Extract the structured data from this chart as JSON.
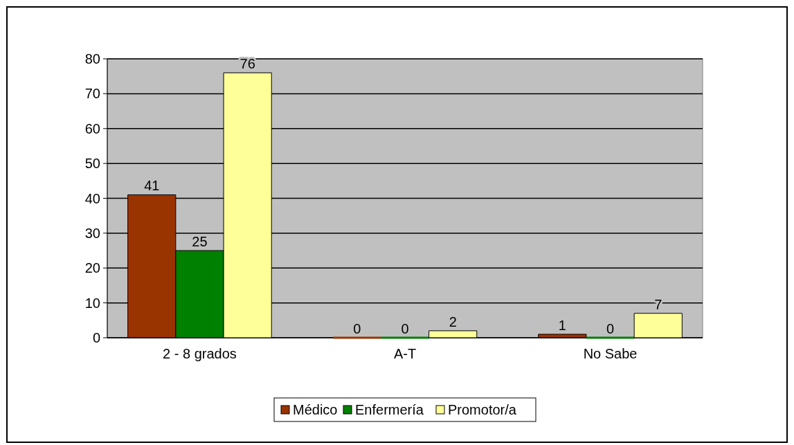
{
  "chart_data": {
    "type": "bar",
    "categories": [
      "2 - 8 grados",
      "A-T",
      "No Sabe"
    ],
    "series": [
      {
        "name": "Médico",
        "color": "#993300",
        "values": [
          41,
          0,
          1
        ]
      },
      {
        "name": "Enfermería",
        "color": "#008000",
        "values": [
          25,
          0,
          0
        ]
      },
      {
        "name": "Promotor/a",
        "color": "#ffff99",
        "values": [
          76,
          2,
          7
        ]
      }
    ],
    "ylim": [
      0,
      80
    ],
    "yticks": [
      0,
      10,
      20,
      30,
      40,
      50,
      60,
      70,
      80
    ],
    "grid": "y",
    "legend": "bottom",
    "data_labels": true
  }
}
